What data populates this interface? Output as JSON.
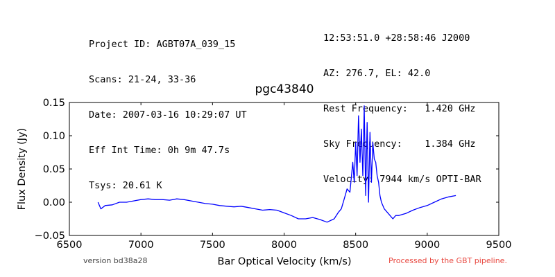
{
  "header": {
    "left_lines": [
      "Project ID: AGBT07A_039_15",
      "Scans: 21-24, 33-36",
      "Date: 2007-03-16 10:29:07 UT",
      "Eff Int Time: 0h 9m 47.7s",
      "Tsys: 20.61 K"
    ],
    "right_lines": [
      "12:53:51.0 +28:58:46 J2000",
      "AZ: 276.7, EL: 42.0",
      "Rest Frequency:   1.420 GHz",
      "Sky Frequency:    1.384 GHz",
      "Velocity: 7944 km/s OPTI-BAR"
    ]
  },
  "footer": {
    "version": "version bd38a28",
    "pipeline": "Processed by the GBT pipeline."
  },
  "colors": {
    "series": "#0000ff",
    "pipeline_text": "#e8473f"
  },
  "chart_data": {
    "type": "line",
    "title": "pgc43840",
    "xlabel": "Bar Optical Velocity (km/s)",
    "ylabel": "Flux Density (Jy)",
    "xlim": [
      6500,
      9500
    ],
    "ylim": [
      -0.05,
      0.15
    ],
    "xticks": [
      6500,
      7000,
      7500,
      8000,
      8500,
      9000,
      9500
    ],
    "xtick_labels": [
      "6500",
      "7000",
      "7500",
      "8000",
      "8500",
      "9000",
      "9500"
    ],
    "yticks": [
      -0.05,
      0.0,
      0.05,
      0.1,
      0.15
    ],
    "ytick_labels": [
      "−0.05",
      "0.00",
      "0.05",
      "0.10",
      "0.15"
    ],
    "grid": false,
    "legend": "none",
    "series": [
      {
        "x": [
          6700,
          6720,
          6750,
          6800,
          6850,
          6900,
          6950,
          7000,
          7050,
          7100,
          7150,
          7200,
          7250,
          7300,
          7350,
          7400,
          7450,
          7500,
          7550,
          7600,
          7650,
          7700,
          7750,
          7800,
          7850,
          7900,
          7950,
          8000,
          8050,
          8100,
          8150,
          8200,
          8250,
          8300,
          8350,
          8380,
          8400,
          8420,
          8440,
          8460,
          8480,
          8490,
          8500,
          8510,
          8520,
          8530,
          8540,
          8550,
          8560,
          8570,
          8580,
          8590,
          8600,
          8610,
          8620,
          8630,
          8640,
          8650,
          8660,
          8670,
          8680,
          8700,
          8720,
          8740,
          8760,
          8780,
          8800,
          8850,
          8900,
          8950,
          9000,
          9050,
          9100,
          9150,
          9200
        ],
        "y": [
          0.0,
          -0.01,
          -0.005,
          -0.004,
          0.0,
          0.0,
          0.002,
          0.004,
          0.005,
          0.004,
          0.004,
          0.003,
          0.005,
          0.004,
          0.002,
          0.0,
          -0.002,
          -0.003,
          -0.005,
          -0.006,
          -0.007,
          -0.006,
          -0.008,
          -0.01,
          -0.012,
          -0.011,
          -0.012,
          -0.016,
          -0.02,
          -0.025,
          -0.025,
          -0.023,
          -0.026,
          -0.03,
          -0.025,
          -0.015,
          -0.01,
          0.005,
          0.02,
          0.015,
          0.06,
          0.03,
          0.09,
          0.04,
          0.13,
          0.06,
          0.11,
          0.04,
          0.145,
          0.01,
          0.12,
          0.0,
          0.105,
          0.03,
          0.09,
          0.065,
          0.06,
          0.04,
          0.03,
          0.01,
          0.0,
          -0.01,
          -0.015,
          -0.02,
          -0.025,
          -0.02,
          -0.02,
          -0.017,
          -0.012,
          -0.008,
          -0.005,
          0.0,
          0.005,
          0.008,
          0.01
        ]
      }
    ]
  }
}
